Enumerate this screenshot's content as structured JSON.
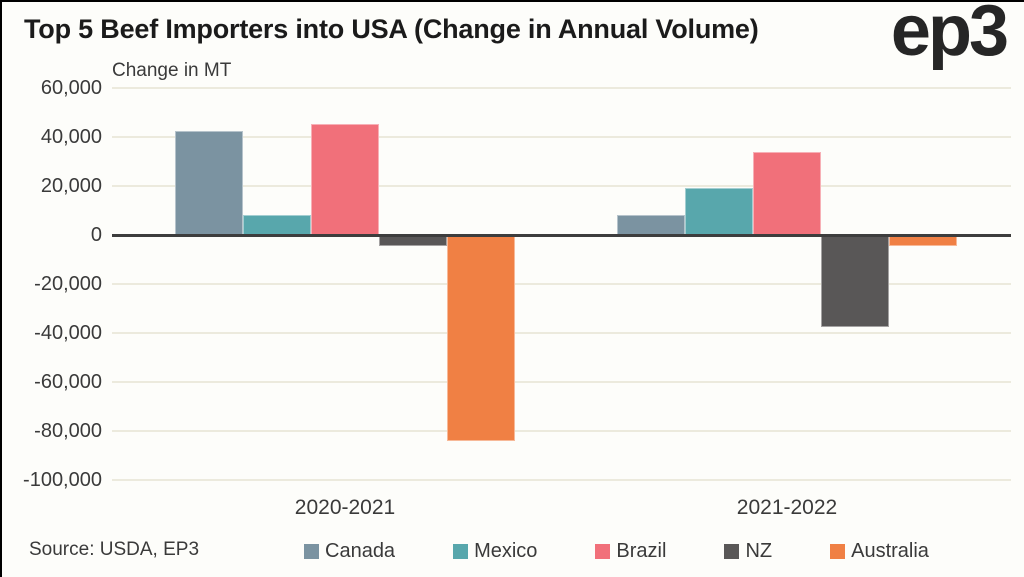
{
  "header": {
    "title": "Top 5 Beef Importers into USA (Change in Annual Volume)",
    "logo_text": "ep3"
  },
  "footer": {
    "source": "Source: USDA, EP3"
  },
  "chart_data": {
    "type": "bar",
    "title": "Top 5 Beef Importers into USA (Change in Annual Volume)",
    "value_axis_label": "Change in MT",
    "categories": [
      "2020-2021",
      "2021-2022"
    ],
    "series": [
      {
        "name": "Canada",
        "color": "#7b93a1",
        "values": [
          42500,
          8000
        ]
      },
      {
        "name": "Mexico",
        "color": "#58a7ac",
        "values": [
          8000,
          19000
        ]
      },
      {
        "name": "Brazil",
        "color": "#f1707a",
        "values": [
          45500,
          34000
        ]
      },
      {
        "name": "NZ",
        "color": "#595757",
        "values": [
          -4500,
          -37500
        ]
      },
      {
        "name": "Australia",
        "color": "#f08044",
        "values": [
          -84000,
          -4500
        ]
      }
    ],
    "ylim": [
      -100000,
      60000
    ],
    "yticks": [
      60000,
      40000,
      20000,
      0,
      -20000,
      -40000,
      -60000,
      -80000,
      -100000
    ],
    "ytick_labels": [
      "60,000",
      "40,000",
      "20,000",
      "0",
      "-20,000",
      "-40,000",
      "-60,000",
      "-80,000",
      "-100,000"
    ],
    "grid": true,
    "legend_position": "bottom",
    "colors": {
      "axis_line": "#3d3d3d",
      "gridline": "#eceadd",
      "text": "#3a3a3a",
      "title_text": "#1b1b1b"
    }
  }
}
